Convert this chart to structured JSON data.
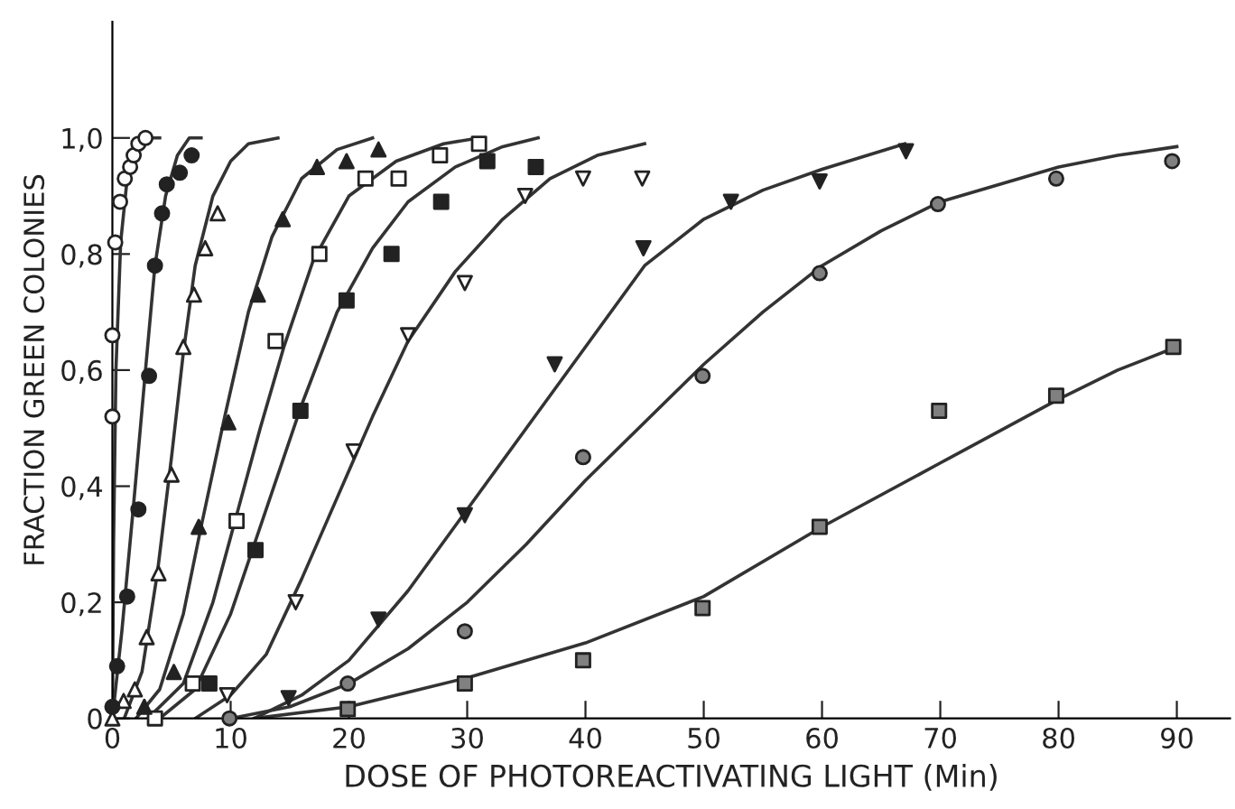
{
  "chart_data": {
    "type": "scatter",
    "xlabel": "DOSE OF PHOTOREACTIVATING LIGHT (Min)",
    "ylabel": "FRACTION GREEN COLONIES",
    "xlim": [
      0,
      94.5
    ],
    "ylim": [
      0,
      1.2
    ],
    "xticks": [
      0,
      10,
      20,
      30,
      40,
      50,
      60,
      70,
      80,
      90
    ],
    "yticks": [
      0,
      {
        "value": 0.2,
        "label": "0,2"
      },
      {
        "value": 0.4,
        "label": "0,4"
      },
      {
        "value": 0.6,
        "label": "0,6"
      },
      {
        "value": 0.8,
        "label": "0,8"
      },
      {
        "value": 1.0,
        "label": "1,0"
      }
    ],
    "grid": false,
    "legend": false,
    "series": [
      {
        "marker": "circle",
        "color": "#ffffff",
        "x": [
          0,
          0,
          0.24,
          0.65,
          1.05,
          1.5,
          1.8,
          2.2,
          2.8
        ],
        "values": [
          0.52,
          0.66,
          0.82,
          0.89,
          0.93,
          0.95,
          0.97,
          0.99,
          1.0
        ]
      },
      {
        "marker": "circle",
        "color": "#222222",
        "x": [
          0,
          0.4,
          1.25,
          2.2,
          3.1,
          3.6,
          4.2,
          4.6,
          5.7,
          6.7
        ],
        "values": [
          0.02,
          0.09,
          0.21,
          0.36,
          0.59,
          0.78,
          0.87,
          0.92,
          0.94,
          0.97
        ]
      },
      {
        "marker": "triangle",
        "color": "#ffffff",
        "x": [
          0,
          0.95,
          1.9,
          2.9,
          3.9,
          5.0,
          6.0,
          6.9,
          7.85,
          8.9
        ],
        "values": [
          0,
          0.03,
          0.05,
          0.14,
          0.25,
          0.42,
          0.64,
          0.73,
          0.81,
          0.87
        ]
      },
      {
        "marker": "triangle",
        "color": "#222222",
        "x": [
          2.7,
          5.2,
          7.3,
          9.8,
          12.3,
          14.4,
          17.3,
          19.8,
          22.5
        ],
        "values": [
          0.02,
          0.08,
          0.33,
          0.51,
          0.73,
          0.86,
          0.95,
          0.96,
          0.98
        ]
      },
      {
        "marker": "square",
        "color": "#ffffff",
        "x": [
          3.6,
          6.8,
          10.5,
          13.8,
          17.5,
          21.4,
          24.2,
          27.7,
          31
        ],
        "values": [
          0,
          0.06,
          0.34,
          0.65,
          0.8,
          0.93,
          0.93,
          0.97,
          0.99
        ]
      },
      {
        "marker": "square",
        "color": "#222222",
        "x": [
          8.2,
          12.1,
          15.9,
          19.8,
          23.6,
          27.8,
          31.7,
          35.8
        ],
        "values": [
          0.06,
          0.29,
          0.53,
          0.72,
          0.8,
          0.89,
          0.96,
          0.95
        ]
      },
      {
        "marker": "triangle_down",
        "color": "#ffffff",
        "x": [
          9.7,
          15.5,
          20.4,
          25,
          29.8,
          34.9,
          39.8,
          44.8
        ],
        "values": [
          0.04,
          0.2,
          0.46,
          0.66,
          0.75,
          0.9,
          0.93,
          0.93
        ]
      },
      {
        "marker": "triangle_down",
        "color": "#222222",
        "x": [
          14.9,
          22.5,
          29.8,
          37.4,
          44.9,
          52.3,
          59.8,
          67.1
        ],
        "values": [
          0.035,
          0.17,
          0.35,
          0.61,
          0.81,
          0.89,
          0.925,
          0.977
        ]
      },
      {
        "marker": "circle",
        "color": "#808080",
        "x": [
          9.9,
          19.9,
          29.8,
          39.8,
          49.9,
          59.8,
          69.8,
          79.8,
          89.6
        ],
        "values": [
          0,
          0.06,
          0.15,
          0.45,
          0.59,
          0.767,
          0.886,
          0.93,
          0.96
        ]
      },
      {
        "marker": "square",
        "color": "#808080",
        "x": [
          19.9,
          29.8,
          39.8,
          49.9,
          59.8,
          69.9,
          79.8,
          89.7
        ],
        "values": [
          0.016,
          0.06,
          0.1,
          0.19,
          0.33,
          0.53,
          0.556,
          0.64
        ]
      },
      {
        "type": "line",
        "marker": "none",
        "color": "#333333",
        "x": [
          0,
          0.1,
          0.3,
          0.7,
          1.2,
          2,
          3,
          4
        ],
        "values": [
          0,
          0.3,
          0.6,
          0.82,
          0.92,
          0.98,
          1.0,
          1.0
        ]
      },
      {
        "type": "line",
        "marker": "none",
        "color": "#333333",
        "x": [
          0,
          0.8,
          1.8,
          2.8,
          3.6,
          4.5,
          5.5,
          6.5,
          7.5
        ],
        "values": [
          0,
          0.15,
          0.37,
          0.6,
          0.78,
          0.9,
          0.97,
          1.0,
          1.0
        ]
      },
      {
        "type": "line",
        "marker": "none",
        "color": "#333333",
        "x": [
          1,
          2.5,
          3.8,
          5,
          6,
          7,
          8.5,
          10,
          11.5,
          14
        ],
        "values": [
          0,
          0.08,
          0.25,
          0.45,
          0.63,
          0.78,
          0.9,
          0.96,
          0.99,
          1.0
        ]
      },
      {
        "type": "line",
        "marker": "none",
        "color": "#333333",
        "x": [
          2,
          4,
          6,
          7.5,
          9.5,
          11.5,
          13.5,
          16,
          19,
          22
        ],
        "values": [
          0,
          0.05,
          0.18,
          0.33,
          0.52,
          0.7,
          0.83,
          0.93,
          0.98,
          1.0
        ]
      },
      {
        "type": "line",
        "marker": "none",
        "color": "#333333",
        "x": [
          3,
          6,
          8.5,
          10.5,
          12.5,
          14.5,
          17,
          20,
          24,
          28,
          31
        ],
        "values": [
          0,
          0.06,
          0.2,
          0.35,
          0.5,
          0.64,
          0.79,
          0.9,
          0.96,
          0.99,
          1.0
        ]
      },
      {
        "type": "line",
        "marker": "none",
        "color": "#333333",
        "x": [
          4,
          7,
          10,
          13,
          16,
          19,
          22,
          25,
          29,
          33,
          36
        ],
        "values": [
          0,
          0.05,
          0.18,
          0.36,
          0.54,
          0.7,
          0.81,
          0.89,
          0.95,
          0.985,
          1.0
        ]
      },
      {
        "type": "line",
        "marker": "none",
        "color": "#333333",
        "x": [
          7,
          10,
          13,
          16,
          19,
          22,
          25,
          29,
          33,
          37,
          41,
          45
        ],
        "values": [
          0,
          0.04,
          0.11,
          0.24,
          0.38,
          0.52,
          0.65,
          0.77,
          0.86,
          0.93,
          0.97,
          0.99
        ]
      },
      {
        "type": "line",
        "marker": "none",
        "color": "#333333",
        "x": [
          12,
          16,
          20,
          25,
          30,
          35,
          40,
          45,
          50,
          55,
          60,
          67
        ],
        "values": [
          0,
          0.04,
          0.1,
          0.22,
          0.36,
          0.5,
          0.64,
          0.78,
          0.86,
          0.91,
          0.946,
          0.99
        ]
      },
      {
        "type": "line",
        "marker": "none",
        "color": "#333333",
        "x": [
          10,
          15,
          20,
          25,
          30,
          35,
          40,
          45,
          50,
          55,
          60,
          65,
          70,
          75,
          80,
          85,
          90
        ],
        "values": [
          0,
          0.02,
          0.06,
          0.12,
          0.2,
          0.3,
          0.41,
          0.51,
          0.61,
          0.7,
          0.78,
          0.84,
          0.89,
          0.92,
          0.95,
          0.97,
          0.985
        ]
      },
      {
        "type": "line",
        "marker": "none",
        "color": "#333333",
        "x": [
          12,
          20,
          30,
          40,
          50,
          60,
          70,
          80,
          85,
          90
        ],
        "values": [
          0,
          0.02,
          0.07,
          0.13,
          0.21,
          0.33,
          0.44,
          0.55,
          0.6,
          0.64
        ]
      }
    ]
  }
}
